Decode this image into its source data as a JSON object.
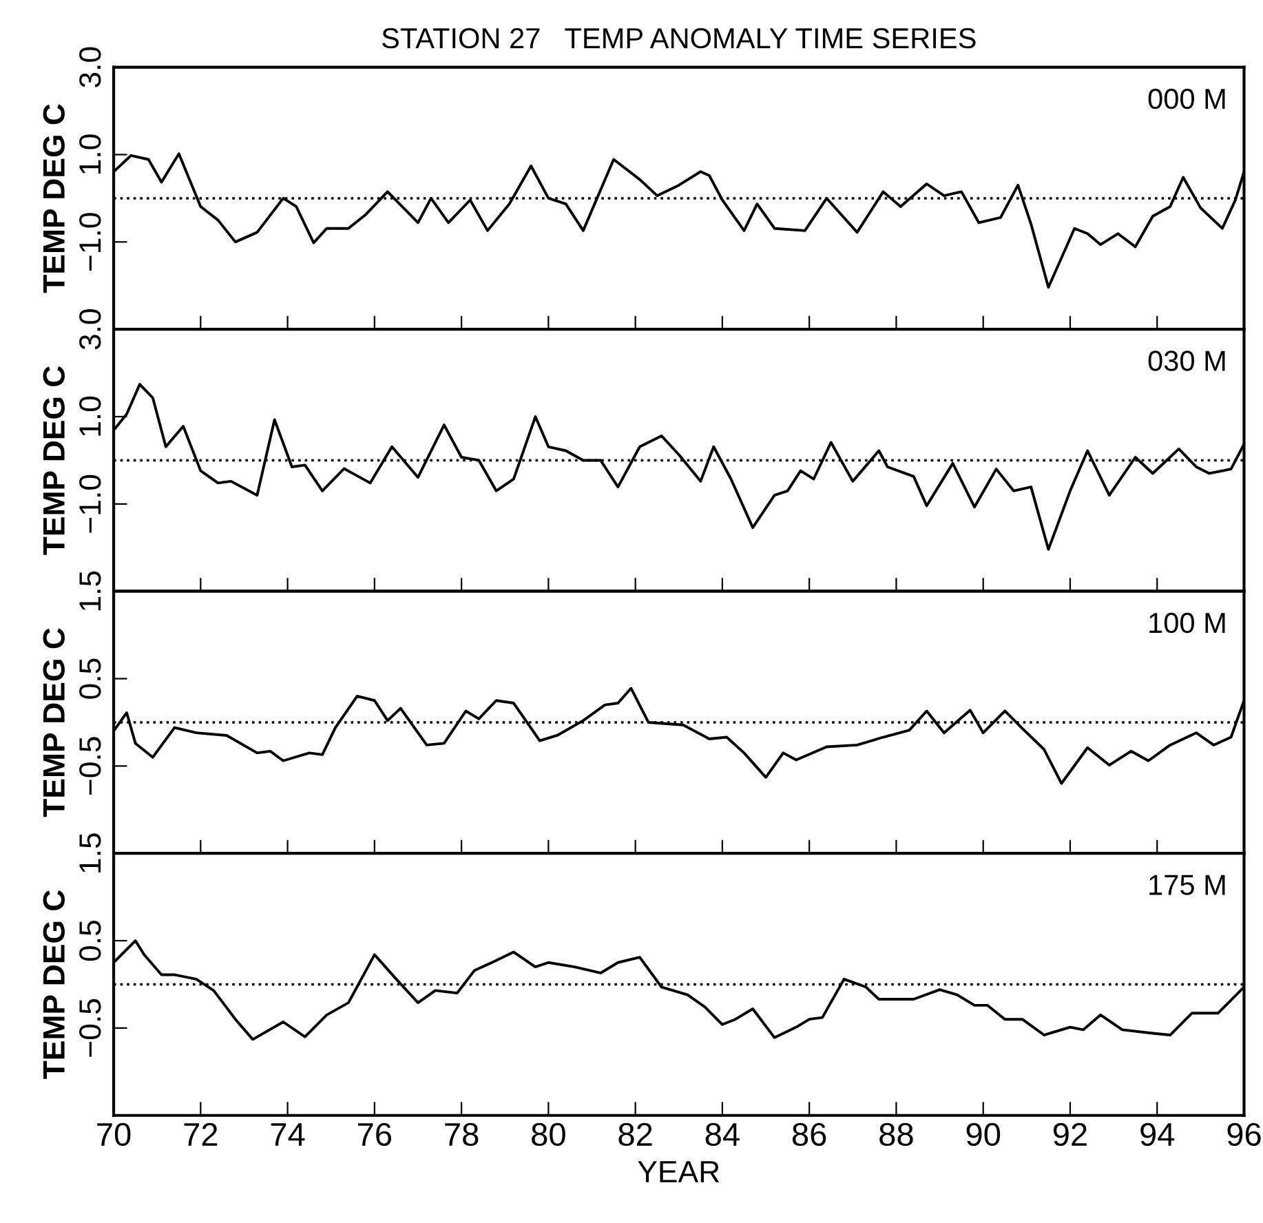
{
  "chart_data": [
    {
      "type": "line",
      "title": "STATION 27   TEMP ANOMALY TIME SERIES",
      "ylabel": "TEMP DEG C",
      "annotations": [
        "000 M"
      ],
      "xlim": [
        70,
        96
      ],
      "ylim": [
        -3,
        3
      ],
      "xticks": [
        70,
        72,
        74,
        76,
        78,
        80,
        82,
        84,
        86,
        88,
        90,
        92,
        94,
        96
      ],
      "yticks": [
        {
          "value": 3.0,
          "label": "3.0"
        },
        {
          "value": 1.0,
          "label": "1.0"
        },
        {
          "value": -1.0,
          "label": "−1.0"
        },
        {
          "value": -3.0,
          "label": null
        }
      ],
      "tick_labels": "y",
      "ref_lines": [
        {
          "axis": "y",
          "value": 0,
          "label": null,
          "line_style": "dotted",
          "color": "#000000"
        }
      ],
      "series": [
        {
          "color": "#000000",
          "x": [
            70,
            70.4,
            70.8,
            71.1,
            71.5,
            72.0,
            72.4,
            72.8,
            73.3,
            73.9,
            74.2,
            74.6,
            74.9,
            75.4,
            75.8,
            76.3,
            77.0,
            77.3,
            77.7,
            78.2,
            78.6,
            79.1,
            79.6,
            80.0,
            80.4,
            80.8,
            81.5,
            82.1,
            82.5,
            83.0,
            83.5,
            83.7,
            84.0,
            84.5,
            84.8,
            85.2,
            85.9,
            86.4,
            87.1,
            87.7,
            88.1,
            88.7,
            89.1,
            89.5,
            89.9,
            90.4,
            90.8,
            91.1,
            91.5,
            92.1,
            92.4,
            92.7,
            93.1,
            93.5,
            93.9,
            94.3,
            94.6,
            95.0,
            95.5,
            95.8,
            96
          ],
          "values": [
            0.61,
            0.98,
            0.89,
            0.37,
            1.02,
            -0.19,
            -0.5,
            -1.0,
            -0.78,
            0,
            -0.19,
            -1.02,
            -0.69,
            -0.69,
            -0.37,
            0.15,
            -0.56,
            0,
            -0.56,
            -0.04,
            -0.74,
            -0.13,
            0.74,
            0,
            -0.13,
            -0.74,
            0.89,
            0.43,
            0.06,
            0.3,
            0.61,
            0.52,
            -0.04,
            -0.74,
            -0.13,
            -0.69,
            -0.74,
            0,
            -0.78,
            0.15,
            -0.19,
            0.33,
            0.06,
            0.15,
            -0.56,
            -0.44,
            0.3,
            -0.59,
            -2.04,
            -0.69,
            -0.81,
            -1.06,
            -0.81,
            -1.11,
            -0.41,
            -0.19,
            0.48,
            -0.22,
            -0.69,
            -0.04,
            0.61
          ]
        }
      ]
    },
    {
      "type": "line",
      "ylabel": "TEMP DEG C",
      "annotations": [
        "030 M"
      ],
      "xlim": [
        70,
        96
      ],
      "ylim": [
        -3,
        3
      ],
      "xticks": [
        70,
        72,
        74,
        76,
        78,
        80,
        82,
        84,
        86,
        88,
        90,
        92,
        94,
        96
      ],
      "yticks": [
        {
          "value": 3.0,
          "label": "3.0"
        },
        {
          "value": 1.0,
          "label": "1.0"
        },
        {
          "value": -1.0,
          "label": "−1.0"
        },
        {
          "value": -3.0,
          "label": null
        }
      ],
      "tick_labels": "y",
      "ref_lines": [
        {
          "axis": "y",
          "value": 0,
          "label": null,
          "line_style": "dotted",
          "color": "#000000"
        }
      ],
      "series": [
        {
          "color": "#000000",
          "x": [
            70,
            70.3,
            70.6,
            70.9,
            71.2,
            71.6,
            72.0,
            72.4,
            72.7,
            73.3,
            73.7,
            74.1,
            74.4,
            74.8,
            75.3,
            75.9,
            76.4,
            77.0,
            77.6,
            78.0,
            78.4,
            78.8,
            79.2,
            79.7,
            80.0,
            80.4,
            80.8,
            81.2,
            81.6,
            82.1,
            82.6,
            83.0,
            83.5,
            83.8,
            84.2,
            84.7,
            85.2,
            85.5,
            85.8,
            86.1,
            86.5,
            87.0,
            87.6,
            87.8,
            88.4,
            88.7,
            89.3,
            89.8,
            90.3,
            90.7,
            91.1,
            91.5,
            92.0,
            92.4,
            92.9,
            93.5,
            93.9,
            94.5,
            94.9,
            95.2,
            95.7,
            96
          ],
          "values": [
            0.69,
            1.06,
            1.74,
            1.43,
            0.31,
            0.78,
            -0.24,
            -0.52,
            -0.48,
            -0.8,
            0.93,
            -0.15,
            -0.11,
            -0.7,
            -0.19,
            -0.52,
            0.31,
            -0.39,
            0.81,
            0.07,
            0,
            -0.7,
            -0.43,
            1.0,
            0.31,
            0.22,
            0,
            0,
            -0.61,
            0.31,
            0.56,
            0.13,
            -0.48,
            0.31,
            -0.43,
            -1.54,
            -0.8,
            -0.7,
            -0.24,
            -0.43,
            0.41,
            -0.48,
            0.22,
            -0.15,
            -0.37,
            -1.04,
            -0.07,
            -1.07,
            -0.2,
            -0.7,
            -0.61,
            -2.04,
            -0.7,
            0.22,
            -0.8,
            0.07,
            -0.3,
            0.26,
            -0.15,
            -0.3,
            -0.2,
            0.37
          ]
        }
      ]
    },
    {
      "type": "line",
      "ylabel": "TEMP DEG C",
      "annotations": [
        "100 M"
      ],
      "xlim": [
        70,
        96
      ],
      "ylim": [
        -1.5,
        1.5
      ],
      "xticks": [
        70,
        72,
        74,
        76,
        78,
        80,
        82,
        84,
        86,
        88,
        90,
        92,
        94,
        96
      ],
      "yticks": [
        {
          "value": 1.5,
          "label": "1.5"
        },
        {
          "value": 0.5,
          "label": "0.5"
        },
        {
          "value": -0.5,
          "label": "−0.5"
        },
        {
          "value": -1.5,
          "label": null
        }
      ],
      "tick_labels": "y",
      "ref_lines": [
        {
          "axis": "y",
          "value": 0,
          "label": null,
          "line_style": "dotted",
          "color": "#000000"
        }
      ],
      "series": [
        {
          "color": "#000000",
          "x": [
            70,
            70.3,
            70.5,
            70.9,
            71.4,
            71.9,
            72.6,
            73.3,
            73.6,
            73.9,
            74.5,
            74.8,
            75.1,
            75.6,
            76.0,
            76.3,
            76.6,
            77.2,
            77.6,
            78.1,
            78.4,
            78.8,
            79.2,
            79.8,
            80.2,
            80.8,
            81.3,
            81.6,
            81.9,
            82.3,
            83.1,
            83.7,
            84.1,
            84.5,
            85.0,
            85.4,
            85.7,
            86.4,
            87.1,
            87.7,
            88.3,
            88.7,
            89.1,
            89.7,
            90.0,
            90.5,
            90.9,
            91.4,
            91.8,
            92.4,
            92.9,
            93.4,
            93.8,
            94.3,
            94.9,
            95.3,
            95.7,
            96
          ],
          "values": [
            -0.1,
            0.11,
            -0.24,
            -0.4,
            -0.06,
            -0.12,
            -0.15,
            -0.35,
            -0.33,
            -0.44,
            -0.35,
            -0.37,
            -0.06,
            0.3,
            0.25,
            0.02,
            0.16,
            -0.26,
            -0.24,
            0.13,
            0.04,
            0.25,
            0.22,
            -0.21,
            -0.15,
            0.02,
            0.2,
            0.22,
            0.39,
            0,
            -0.03,
            -0.19,
            -0.17,
            -0.35,
            -0.63,
            -0.35,
            -0.43,
            -0.28,
            -0.26,
            -0.17,
            -0.09,
            0.13,
            -0.12,
            0.14,
            -0.12,
            0.13,
            -0.07,
            -0.31,
            -0.7,
            -0.29,
            -0.49,
            -0.33,
            -0.44,
            -0.26,
            -0.12,
            -0.26,
            -0.17,
            0.25
          ]
        }
      ]
    },
    {
      "type": "line",
      "ylabel": "TEMP DEG C",
      "xlabel": "YEAR",
      "annotations": [
        "175 M"
      ],
      "xlim": [
        70,
        96
      ],
      "ylim": [
        -1.5,
        1.5
      ],
      "xticks": [
        70,
        72,
        74,
        76,
        78,
        80,
        82,
        84,
        86,
        88,
        90,
        92,
        94,
        96
      ],
      "yticks": [
        {
          "value": 1.5,
          "label": "1.5"
        },
        {
          "value": 0.5,
          "label": "0.5"
        },
        {
          "value": -0.5,
          "label": "−0.5"
        },
        {
          "value": -1.5,
          "label": null
        }
      ],
      "ref_lines": [
        {
          "axis": "y",
          "value": 0,
          "label": null,
          "line_style": "dotted",
          "color": "#000000"
        }
      ],
      "series": [
        {
          "color": "#000000",
          "x": [
            70,
            70.5,
            70.7,
            71.1,
            71.4,
            71.9,
            72.3,
            72.8,
            73.2,
            73.9,
            74.4,
            74.9,
            75.4,
            76.0,
            76.5,
            77.0,
            77.4,
            77.9,
            78.3,
            78.7,
            79.2,
            79.7,
            80.0,
            80.6,
            81.2,
            81.6,
            82.1,
            82.6,
            83.2,
            83.6,
            84.0,
            84.3,
            84.7,
            85.2,
            85.7,
            86.0,
            86.3,
            86.8,
            87.3,
            87.6,
            88.4,
            89.0,
            89.4,
            89.8,
            90.1,
            90.5,
            90.9,
            91.4,
            92.0,
            92.3,
            92.7,
            93.2,
            93.9,
            94.3,
            94.8,
            95.4,
            96
          ],
          "values": [
            0.25,
            0.5,
            0.34,
            0.11,
            0.11,
            0.06,
            -0.07,
            -0.4,
            -0.63,
            -0.43,
            -0.6,
            -0.35,
            -0.21,
            0.34,
            0.06,
            -0.21,
            -0.07,
            -0.1,
            0.16,
            0.25,
            0.37,
            0.2,
            0.25,
            0.2,
            0.13,
            0.25,
            0.31,
            -0.03,
            -0.12,
            -0.26,
            -0.46,
            -0.4,
            -0.28,
            -0.61,
            -0.49,
            -0.4,
            -0.38,
            0.06,
            -0.03,
            -0.17,
            -0.17,
            -0.06,
            -0.12,
            -0.24,
            -0.24,
            -0.4,
            -0.4,
            -0.58,
            -0.49,
            -0.52,
            -0.35,
            -0.52,
            -0.56,
            -0.58,
            -0.33,
            -0.33,
            -0.03
          ]
        }
      ]
    }
  ]
}
